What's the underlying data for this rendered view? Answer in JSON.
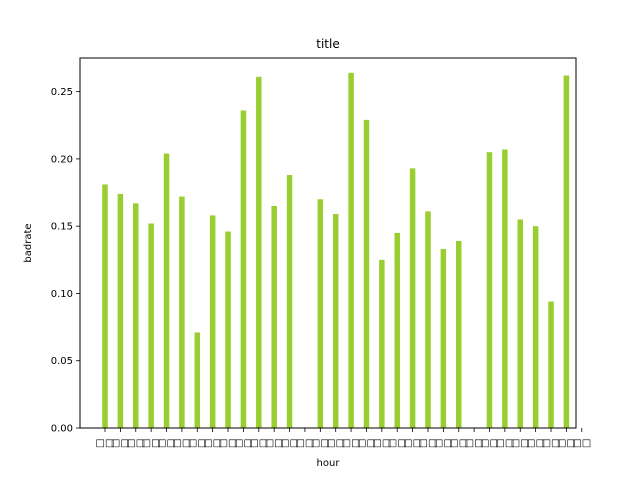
{
  "chart_data": {
    "type": "bar",
    "title": "title",
    "xlabel": "hour",
    "ylabel": "badrate",
    "bar_color": "#9ACD32",
    "grid": false,
    "legend": "none",
    "ylim": [
      0,
      0.275
    ],
    "yticks": [
      "0.00",
      "0.05",
      "0.10",
      "0.15",
      "0.20",
      "0.25"
    ],
    "ytick_values": [
      0,
      0.05,
      0.1,
      0.15,
      0.2,
      0.25
    ],
    "categories": [
      "□□",
      "□□",
      "□□",
      "□□",
      "□□",
      "□□",
      "□□",
      "□□",
      "□□",
      "□□",
      "□□",
      "□□",
      "□□",
      "□□",
      "□□",
      "□□",
      "□□",
      "□□",
      "□□",
      "□□",
      "□□",
      "□□",
      "□□",
      "□□",
      "□□",
      "□□",
      "□□",
      "□□",
      "□□",
      "□□",
      "□□",
      "□□"
    ],
    "values": [
      0.181,
      0.174,
      0.167,
      0.152,
      0.204,
      0.172,
      0.071,
      0.158,
      0.146,
      0.236,
      0.261,
      0.165,
      0.188,
      null,
      0.17,
      0.159,
      0.264,
      0.229,
      0.125,
      0.145,
      0.193,
      0.161,
      0.133,
      0.139,
      null,
      0.205,
      0.207,
      0.155,
      0.15,
      0.094,
      0.262,
      null
    ]
  }
}
